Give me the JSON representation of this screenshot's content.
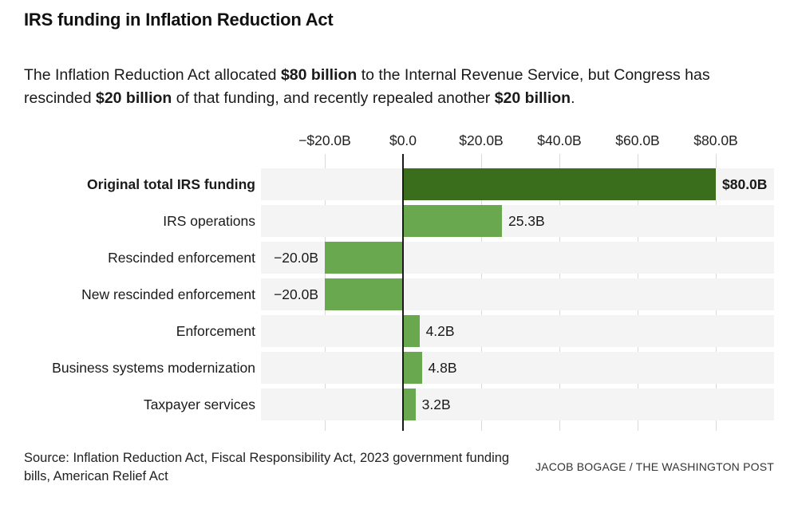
{
  "header": {
    "title": "IRS funding in Inflation Reduction Act",
    "subtitle_segments": [
      {
        "text": "The Inflation Reduction Act allocated ",
        "bold": false
      },
      {
        "text": "$80 billion",
        "bold": true
      },
      {
        "text": " to the Internal Revenue Service, but Congress has rescinded ",
        "bold": false
      },
      {
        "text": "$20 billion",
        "bold": true
      },
      {
        "text": " of that funding, and recently repealed another ",
        "bold": false
      },
      {
        "text": "$20 billion",
        "bold": true
      },
      {
        "text": ".",
        "bold": false
      }
    ]
  },
  "chart_data": {
    "type": "bar",
    "orientation": "horizontal",
    "title": "IRS funding in Inflation Reduction Act",
    "categories": [
      "Original total IRS funding",
      "IRS operations",
      "Rescinded enforcement",
      "New rescinded enforcement",
      "Enforcement",
      "Business systems modernization",
      "Taxpayer services"
    ],
    "values": [
      80.0,
      25.3,
      -20.0,
      -20.0,
      4.2,
      4.8,
      3.2
    ],
    "value_labels": [
      "$80.0B",
      "25.3B",
      "−20.0B",
      "−20.0B",
      "4.2B",
      "4.8B",
      "3.2B"
    ],
    "emphasized_rows": [
      0
    ],
    "x_ticks": [
      {
        "value": -20,
        "label": "−$20.0B"
      },
      {
        "value": 0,
        "label": "$0.0"
      },
      {
        "value": 20,
        "label": "$20.0B"
      },
      {
        "value": 40,
        "label": "$40.0B"
      },
      {
        "value": 60,
        "label": "$60.0B"
      },
      {
        "value": 80,
        "label": "$80.0B"
      }
    ],
    "xlim": [
      -36.3,
      94.9
    ],
    "grid": true,
    "legend": false,
    "units": "billions of dollars",
    "colors": {
      "bar_primary": "#3a6e1c",
      "bar_secondary": "#6aa850",
      "row_band": "#f4f4f4",
      "gridline": "#d9d9d9",
      "zero_line": "#1a1a1a"
    }
  },
  "footer": {
    "source_line1": "Source: Inflation Reduction Act, Fiscal Responsibility Act, 2023 government funding",
    "source_line2": "bills, American Relief Act",
    "credit": "JACOB BOGAGE / THE WASHINGTON POST"
  }
}
